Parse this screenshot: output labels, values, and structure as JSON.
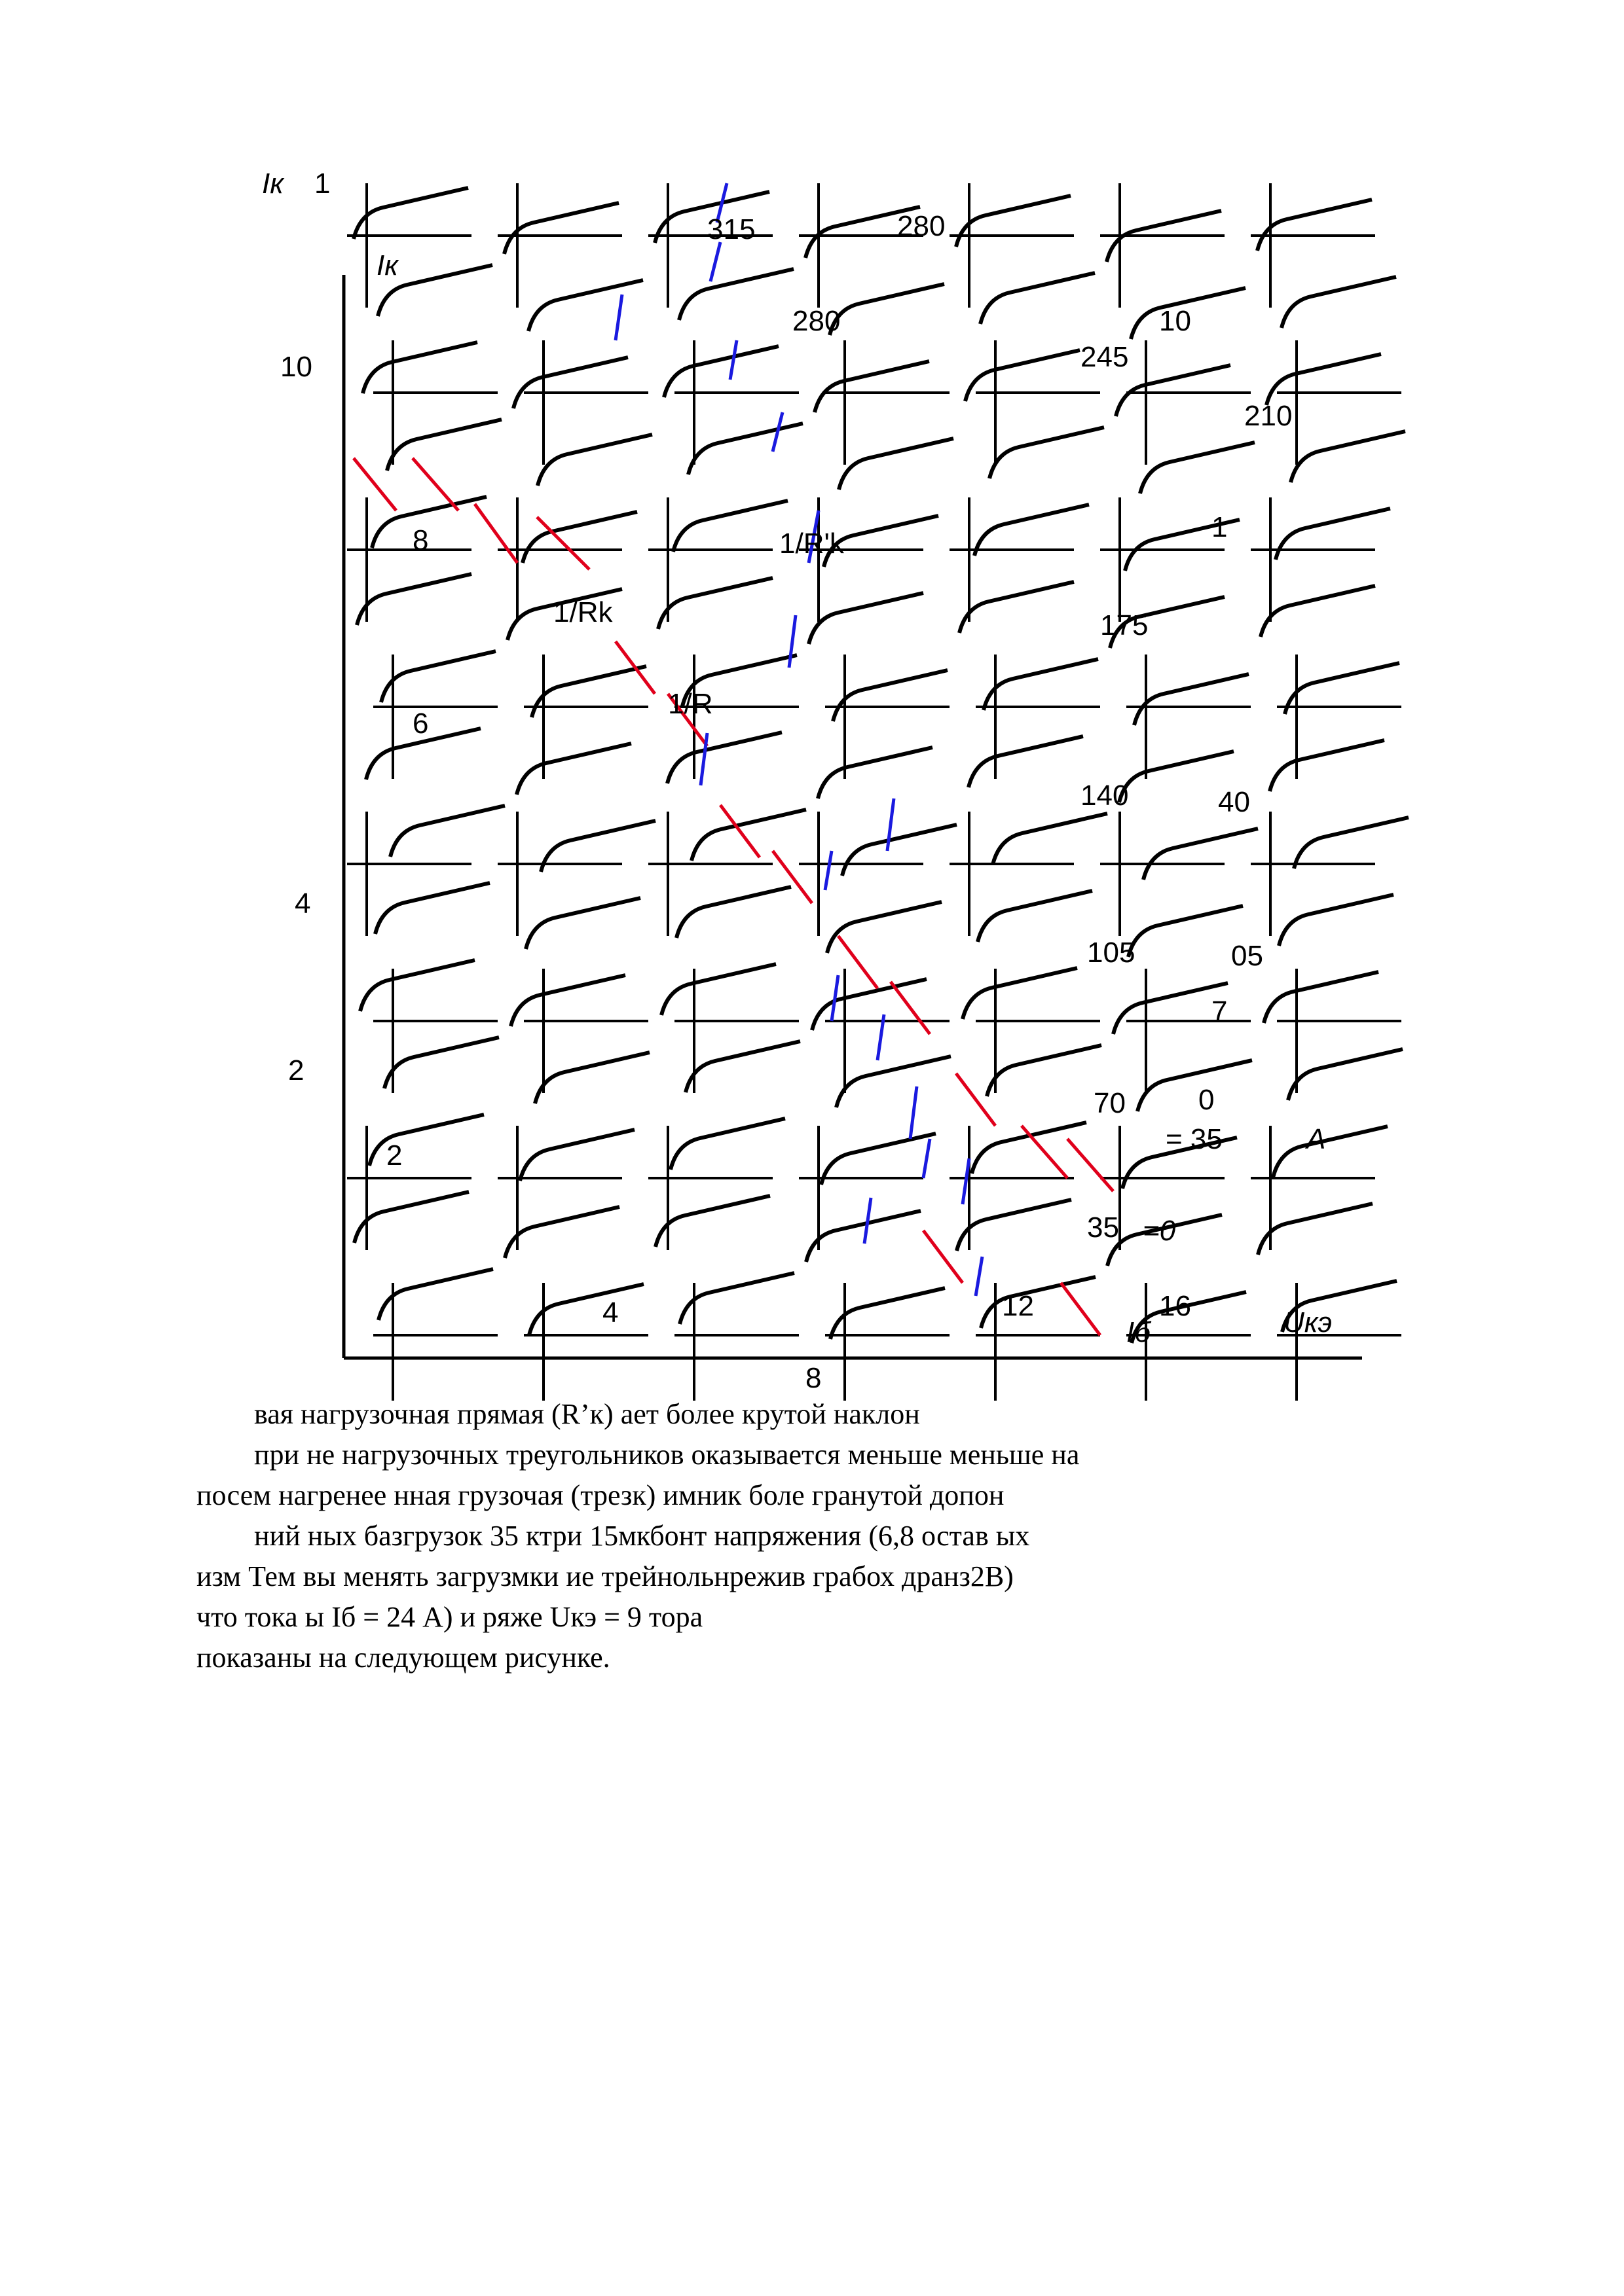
{
  "figure": {
    "axis_y_label": "Iк",
    "axis_y_label_dup": "Iк",
    "axis_x_label": "Uкэ",
    "y_ticks": [
      "10",
      "8",
      "6",
      "4",
      "2"
    ],
    "x_ticks": [
      "4",
      "8",
      "12",
      "16"
    ],
    "top_fragment": "1",
    "line_labels": [
      "1/Rk",
      "1/R'k",
      "1/R"
    ],
    "curve_values": [
      "315",
      "280",
      "280",
      "245",
      "210",
      "175",
      "140",
      "105",
      "70",
      "35"
    ],
    "right_values": [
      "10",
      "1",
      "40",
      "05",
      "7",
      "0"
    ],
    "param_label": "= 35",
    "param_unit": "A",
    "zero_label": "=0",
    "bottom_fragment": "Iб",
    "frag_2": "2"
  },
  "text_lines": [
    "вая нагрузочная прямая (R’к) ает более крутой наклон",
    "при не нагрузочных треугольников оказывается меньше меньше на",
    "посем нагренее нная грузочая (трезк) имник боле гранутой допон",
    "ний ных базгрузок 35 ктри 15мкбонт напряжения (6,8 остав ых",
    "изм Тем вы менять загрузмки ие трейнольнрежив грабох дранз2В)",
    "что тока ы Iб = 24 А) и ряже Uкэ = 9 тора",
    "показаны на следующем рисунке."
  ],
  "colors": {
    "load_line_red": "#e0001b",
    "load_line_blue": "#1a1adf"
  }
}
